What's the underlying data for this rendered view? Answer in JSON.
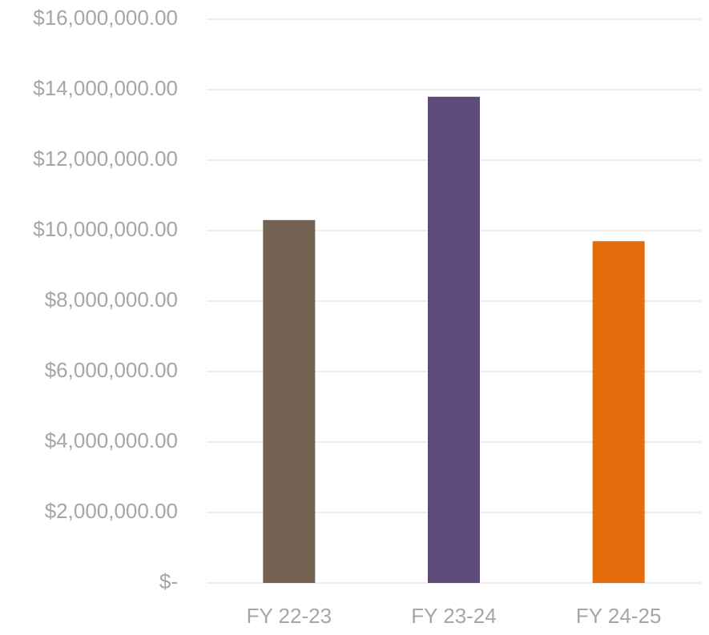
{
  "chart_data": {
    "type": "bar",
    "categories": [
      "FY 22-23",
      "FY 23-24",
      "FY 24-25"
    ],
    "values": [
      10300000,
      13800000,
      9700000
    ],
    "colors": [
      "#736251",
      "#5e4b7a",
      "#e46c0a"
    ],
    "ylim": [
      0,
      16000000
    ],
    "yticks": [
      {
        "value": 0,
        "label": "$-"
      },
      {
        "value": 2000000,
        "label": "$2,000,000.00"
      },
      {
        "value": 4000000,
        "label": "$4,000,000.00"
      },
      {
        "value": 6000000,
        "label": "$6,000,000.00"
      },
      {
        "value": 8000000,
        "label": "$8,000,000.00"
      },
      {
        "value": 10000000,
        "label": "$10,000,000.00"
      },
      {
        "value": 12000000,
        "label": "$12,000,000.00"
      },
      {
        "value": 14000000,
        "label": "$14,000,000.00"
      },
      {
        "value": 16000000,
        "label": "$16,000,000.00"
      }
    ],
    "grid": true
  }
}
